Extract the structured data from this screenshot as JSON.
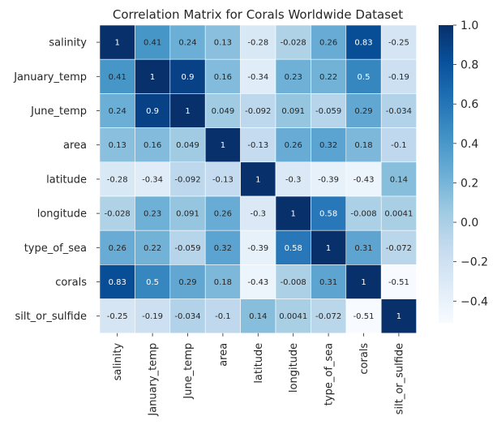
{
  "chart_data": {
    "type": "heatmap",
    "title": "Correlation Matrix for Corals Worldwide Dataset",
    "xlabel": "",
    "ylabel": "",
    "row_labels": [
      "salinity",
      "January_temp",
      "June_temp",
      "area",
      "latitude",
      "longitude",
      "type_of_sea",
      "corals",
      "silt_or_sulfide"
    ],
    "col_labels": [
      "salinity",
      "January_temp",
      "June_temp",
      "area",
      "latitude",
      "longitude",
      "type_of_sea",
      "corals",
      "silt_or_sulfide"
    ],
    "values": [
      [
        1,
        0.41,
        0.24,
        0.13,
        -0.28,
        -0.028,
        0.26,
        0.83,
        -0.25
      ],
      [
        0.41,
        1,
        0.9,
        0.16,
        -0.34,
        0.23,
        0.22,
        0.5,
        -0.19
      ],
      [
        0.24,
        0.9,
        1,
        0.049,
        -0.092,
        0.091,
        -0.059,
        0.29,
        -0.034
      ],
      [
        0.13,
        0.16,
        0.049,
        1,
        -0.13,
        0.26,
        0.32,
        0.18,
        -0.1
      ],
      [
        -0.28,
        -0.34,
        -0.092,
        -0.13,
        1,
        -0.3,
        -0.39,
        -0.43,
        0.14
      ],
      [
        -0.028,
        0.23,
        0.091,
        0.26,
        -0.3,
        1,
        0.58,
        -0.008,
        0.0041
      ],
      [
        0.26,
        0.22,
        -0.059,
        0.32,
        -0.39,
        0.58,
        1,
        0.31,
        -0.072
      ],
      [
        0.83,
        0.5,
        0.29,
        0.18,
        -0.43,
        -0.008,
        0.31,
        1,
        -0.51
      ],
      [
        -0.25,
        -0.19,
        -0.034,
        -0.1,
        0.14,
        0.0041,
        -0.072,
        -0.51,
        1
      ]
    ],
    "value_labels": [
      [
        "1",
        "0.41",
        "0.24",
        "0.13",
        "-0.28",
        "-0.028",
        "0.26",
        "0.83",
        "-0.25"
      ],
      [
        "0.41",
        "1",
        "0.9",
        "0.16",
        "-0.34",
        "0.23",
        "0.22",
        "0.5",
        "-0.19"
      ],
      [
        "0.24",
        "0.9",
        "1",
        "0.049",
        "-0.092",
        "0.091",
        "-0.059",
        "0.29",
        "-0.034"
      ],
      [
        "0.13",
        "0.16",
        "0.049",
        "1",
        "-0.13",
        "0.26",
        "0.32",
        "0.18",
        "-0.1"
      ],
      [
        "-0.28",
        "-0.34",
        "-0.092",
        "-0.13",
        "1",
        "-0.3",
        "-0.39",
        "-0.43",
        "0.14"
      ],
      [
        "-0.028",
        "0.23",
        "0.091",
        "0.26",
        "-0.3",
        "1",
        "0.58",
        "-0.008",
        "0.0041"
      ],
      [
        "0.26",
        "0.22",
        "-0.059",
        "0.32",
        "-0.39",
        "0.58",
        "1",
        "0.31",
        "-0.072"
      ],
      [
        "0.83",
        "0.5",
        "0.29",
        "0.18",
        "-0.43",
        "-0.008",
        "0.31",
        "1",
        "-0.51"
      ],
      [
        "-0.25",
        "-0.19",
        "-0.034",
        "-0.1",
        "0.14",
        "0.0041",
        "-0.072",
        "-0.51",
        "1"
      ]
    ],
    "colormap": "Blues",
    "color_stops": [
      "#f7fbff",
      "#deebf7",
      "#c6dbef",
      "#9ecae1",
      "#6baed6",
      "#4292c6",
      "#2171b5",
      "#08519c",
      "#08306b"
    ],
    "vmin": -0.51,
    "vmax": 1,
    "colorbar": {
      "ticks": [
        1.0,
        0.8,
        0.6,
        0.4,
        0.2,
        0.0,
        -0.2,
        -0.4
      ],
      "tick_labels": [
        "1.0",
        "0.8",
        "0.6",
        "0.4",
        "0.2",
        "0.0",
        "−0.2",
        "−0.4"
      ],
      "placement": "right"
    },
    "grid": false
  }
}
